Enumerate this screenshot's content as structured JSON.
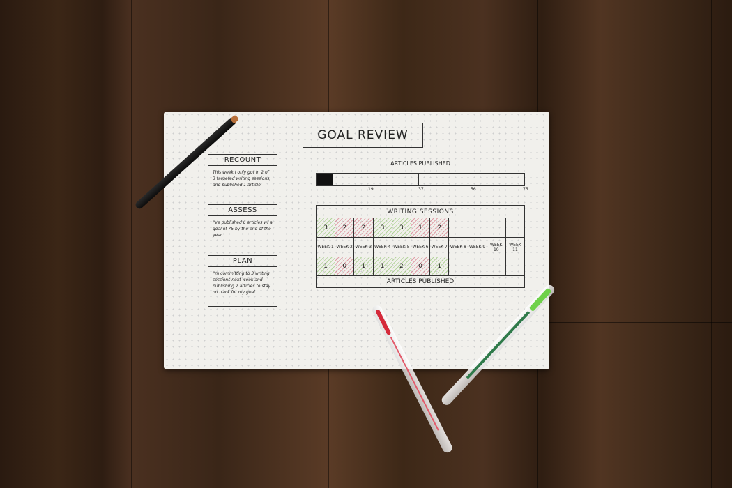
{
  "notebook": {
    "title": "GOAL REVIEW",
    "recount": {
      "heading": "RECOUNT",
      "text": "This week I only got in 2 of 3 targeted writing sessions, and published 1 article."
    },
    "assess": {
      "heading": "ASSESS",
      "text": "I've published 6 articles w/ a goal of 75 by the end of the year."
    },
    "plan": {
      "heading": "PLAN",
      "text": "I'm committing to 3 writing sessions next week and publishing 2 articles to stay on track for my goal."
    },
    "progress": {
      "label": "ARTICLES PUBLISHED",
      "value": 6,
      "goal": 75,
      "ticks": [
        "19",
        "37",
        "56",
        "75"
      ]
    },
    "table": {
      "header": "WRITING SESSIONS",
      "footer": "ARTICLES PUBLISHED",
      "sessions": [
        "3",
        "2",
        "2",
        "3",
        "3",
        "1",
        "2",
        "",
        "",
        "",
        ""
      ],
      "weeks": [
        "WEEK 1",
        "WEEK 2",
        "WEEK 3",
        "WEEK 4",
        "WEEK 5",
        "WEEK 6",
        "WEEK 7",
        "WEEK 8",
        "WEEK 9",
        "WEEK 10",
        "WEEK 11"
      ],
      "articles": [
        "1",
        "0",
        "1",
        "1",
        "2",
        "0",
        "1",
        "",
        "",
        "",
        ""
      ],
      "session_marks": [
        "green",
        "red",
        "red",
        "green",
        "green",
        "red",
        "red",
        "",
        "",
        "",
        ""
      ],
      "article_marks": [
        "green",
        "red",
        "green",
        "green",
        "green",
        "red",
        "green",
        "",
        "",
        "",
        ""
      ]
    }
  },
  "colors": {
    "met": "#82be5a",
    "missed": "#d25a6e"
  }
}
